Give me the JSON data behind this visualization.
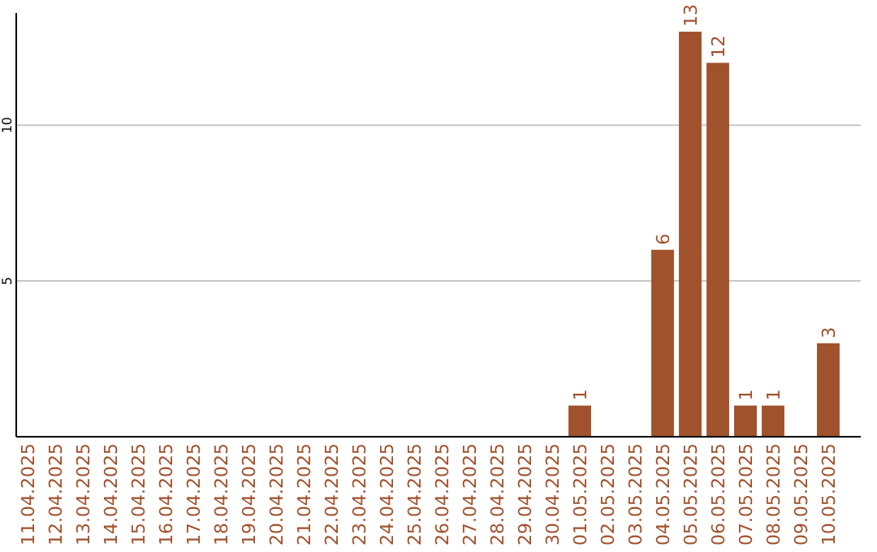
{
  "chart_data": {
    "type": "bar",
    "categories": [
      "11.04.2025",
      "12.04.2025",
      "13.04.2025",
      "14.04.2025",
      "15.04.2025",
      "16.04.2025",
      "17.04.2025",
      "18.04.2025",
      "19.04.2025",
      "20.04.2025",
      "21.04.2025",
      "22.04.2025",
      "23.04.2025",
      "24.04.2025",
      "25.04.2025",
      "26.04.2025",
      "27.04.2025",
      "28.04.2025",
      "29.04.2025",
      "30.04.2025",
      "01.05.2025",
      "02.05.2025",
      "03.05.2025",
      "04.05.2025",
      "05.05.2025",
      "06.05.2025",
      "07.05.2025",
      "08.05.2025",
      "09.05.2025",
      "10.05.2025"
    ],
    "values": [
      0,
      0,
      0,
      0,
      0,
      0,
      0,
      0,
      0,
      0,
      0,
      0,
      0,
      0,
      0,
      0,
      0,
      0,
      0,
      0,
      1,
      0,
      0,
      6,
      13,
      12,
      1,
      1,
      0,
      3
    ],
    "value_labels": [
      null,
      null,
      null,
      null,
      null,
      null,
      null,
      null,
      null,
      null,
      null,
      null,
      null,
      null,
      null,
      null,
      null,
      null,
      null,
      null,
      "1",
      null,
      null,
      "6",
      "13",
      "12",
      "1",
      "1",
      null,
      "3"
    ],
    "color": "#a0522d",
    "ylim": [
      0,
      13.6
    ],
    "yticks": [
      5,
      10
    ],
    "grid": "y"
  }
}
